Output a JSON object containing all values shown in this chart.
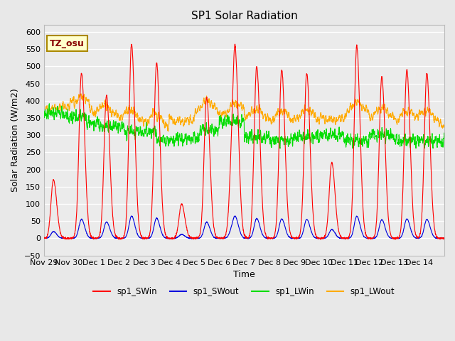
{
  "title": "SP1 Solar Radiation",
  "xlabel": "Time",
  "ylabel": "Solar Radiation (W/m2)",
  "ylim": [
    -50,
    620
  ],
  "yticks": [
    -50,
    0,
    50,
    100,
    150,
    200,
    250,
    300,
    350,
    400,
    450,
    500,
    550,
    600
  ],
  "bg_color": "#e8e8e8",
  "plot_bg": "#ebebeb",
  "annotation_text": "TZ_osu",
  "annotation_color": "#880000",
  "annotation_bg": "#ffffcc",
  "annotation_border": "#aa8800",
  "colors": {
    "SWin": "#ff0000",
    "SWout": "#0000dd",
    "LWin": "#00dd00",
    "LWout": "#ffaa00"
  },
  "legend_labels": [
    "sp1_SWin",
    "sp1_SWout",
    "sp1_LWin",
    "sp1_LWout"
  ],
  "xtick_labels": [
    "Nov 29",
    "Nov 30",
    "Dec 1",
    "Dec 2",
    "Dec 3",
    "Dec 4",
    "Dec 5",
    "Dec 6",
    "Dec 7",
    "Dec 8",
    "Dec 9",
    "Dec 10",
    "Dec 11",
    "Dec 12",
    "Dec 13",
    "Dec 14"
  ],
  "linewidth": 0.8
}
